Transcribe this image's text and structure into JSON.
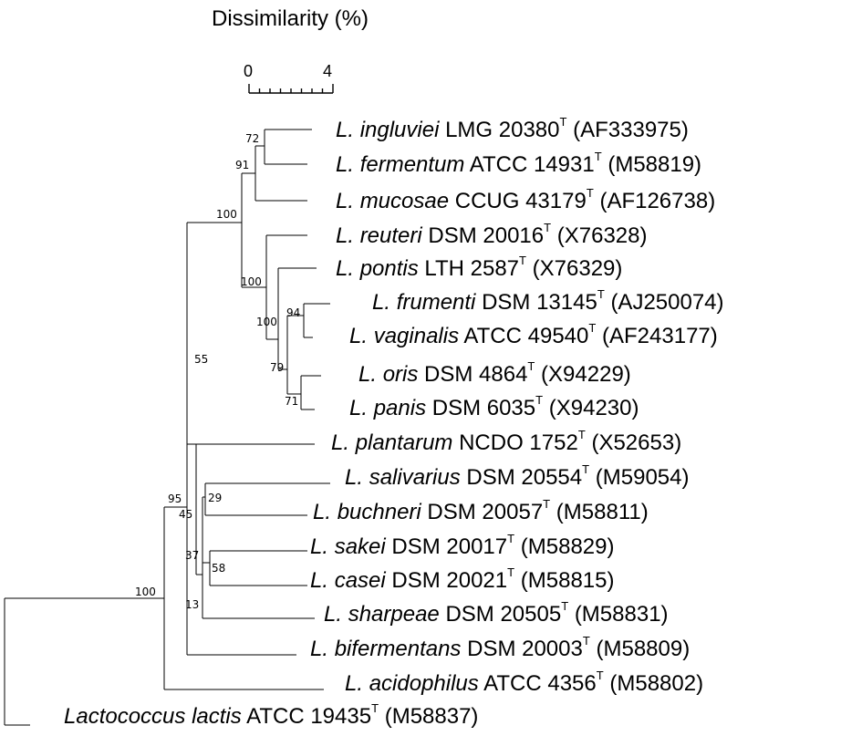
{
  "scale_bar": {
    "title": "Dissimilarity (%)",
    "tick_min": "0",
    "tick_max": "4"
  },
  "taxa": [
    {
      "genus": "L.",
      "species": "ingluviei",
      "strain": "LMG 20380",
      "type_mark": "T",
      "accession": "(AF333975)"
    },
    {
      "genus": "L.",
      "species": "fermentum",
      "strain": "ATCC 14931",
      "type_mark": "T",
      "accession": "(M58819)"
    },
    {
      "genus": "L.",
      "species": "mucosae",
      "strain": "CCUG 43179",
      "type_mark": "T",
      "accession": "(AF126738)"
    },
    {
      "genus": "L.",
      "species": "reuteri",
      "strain": "DSM 20016",
      "type_mark": "T",
      "accession": "(X76328)"
    },
    {
      "genus": "L.",
      "species": "pontis",
      "strain": "LTH 2587",
      "type_mark": "T",
      "accession": "(X76329)"
    },
    {
      "genus": "L.",
      "species": "frumenti",
      "strain": "DSM 13145",
      "type_mark": "T",
      "accession": "(AJ250074)"
    },
    {
      "genus": "L.",
      "species": "vaginalis",
      "strain": "ATCC 49540",
      "type_mark": "T",
      "accession": "(AF243177)"
    },
    {
      "genus": "L.",
      "species": "oris",
      "strain": "DSM 4864",
      "type_mark": "T",
      "accession": "(X94229)"
    },
    {
      "genus": "L.",
      "species": "panis",
      "strain": "DSM 6035",
      "type_mark": "T",
      "accession": "(X94230)"
    },
    {
      "genus": "L.",
      "species": "plantarum",
      "strain": "NCDO 1752",
      "type_mark": "T",
      "accession": "(X52653)"
    },
    {
      "genus": "L.",
      "species": "salivarius",
      "strain": "DSM 20554",
      "type_mark": "T",
      "accession": "(M59054)"
    },
    {
      "genus": "L.",
      "species": "buchneri",
      "strain": "DSM 20057",
      "type_mark": "T",
      "accession": "(M58811)"
    },
    {
      "genus": "L.",
      "species": "sakei",
      "strain": "DSM 20017",
      "type_mark": "T",
      "accession": "(M58829)"
    },
    {
      "genus": "L.",
      "species": "casei",
      "strain": "DSM 20021",
      "type_mark": "T",
      "accession": "(M58815)"
    },
    {
      "genus": "L.",
      "species": "sharpeae",
      "strain": "DSM 20505",
      "type_mark": "T",
      "accession": "(M58831)"
    },
    {
      "genus": "L.",
      "species": "bifermentans",
      "strain": "DSM 20003",
      "type_mark": "T",
      "accession": "(M58809)"
    },
    {
      "genus": "L.",
      "species": "acidophilus",
      "strain": "ATCC 4356",
      "type_mark": "T",
      "accession": "(M58802)"
    },
    {
      "genus": "Lactococcus",
      "species": "lactis",
      "strain": "ATCC 19435",
      "type_mark": "T",
      "accession": "(M58837)"
    }
  ],
  "bootstrap_values": [
    "72",
    "91",
    "100",
    "100",
    "100",
    "94",
    "79",
    "71",
    "55",
    "95",
    "45",
    "29",
    "37",
    "58",
    "13",
    "100"
  ]
}
